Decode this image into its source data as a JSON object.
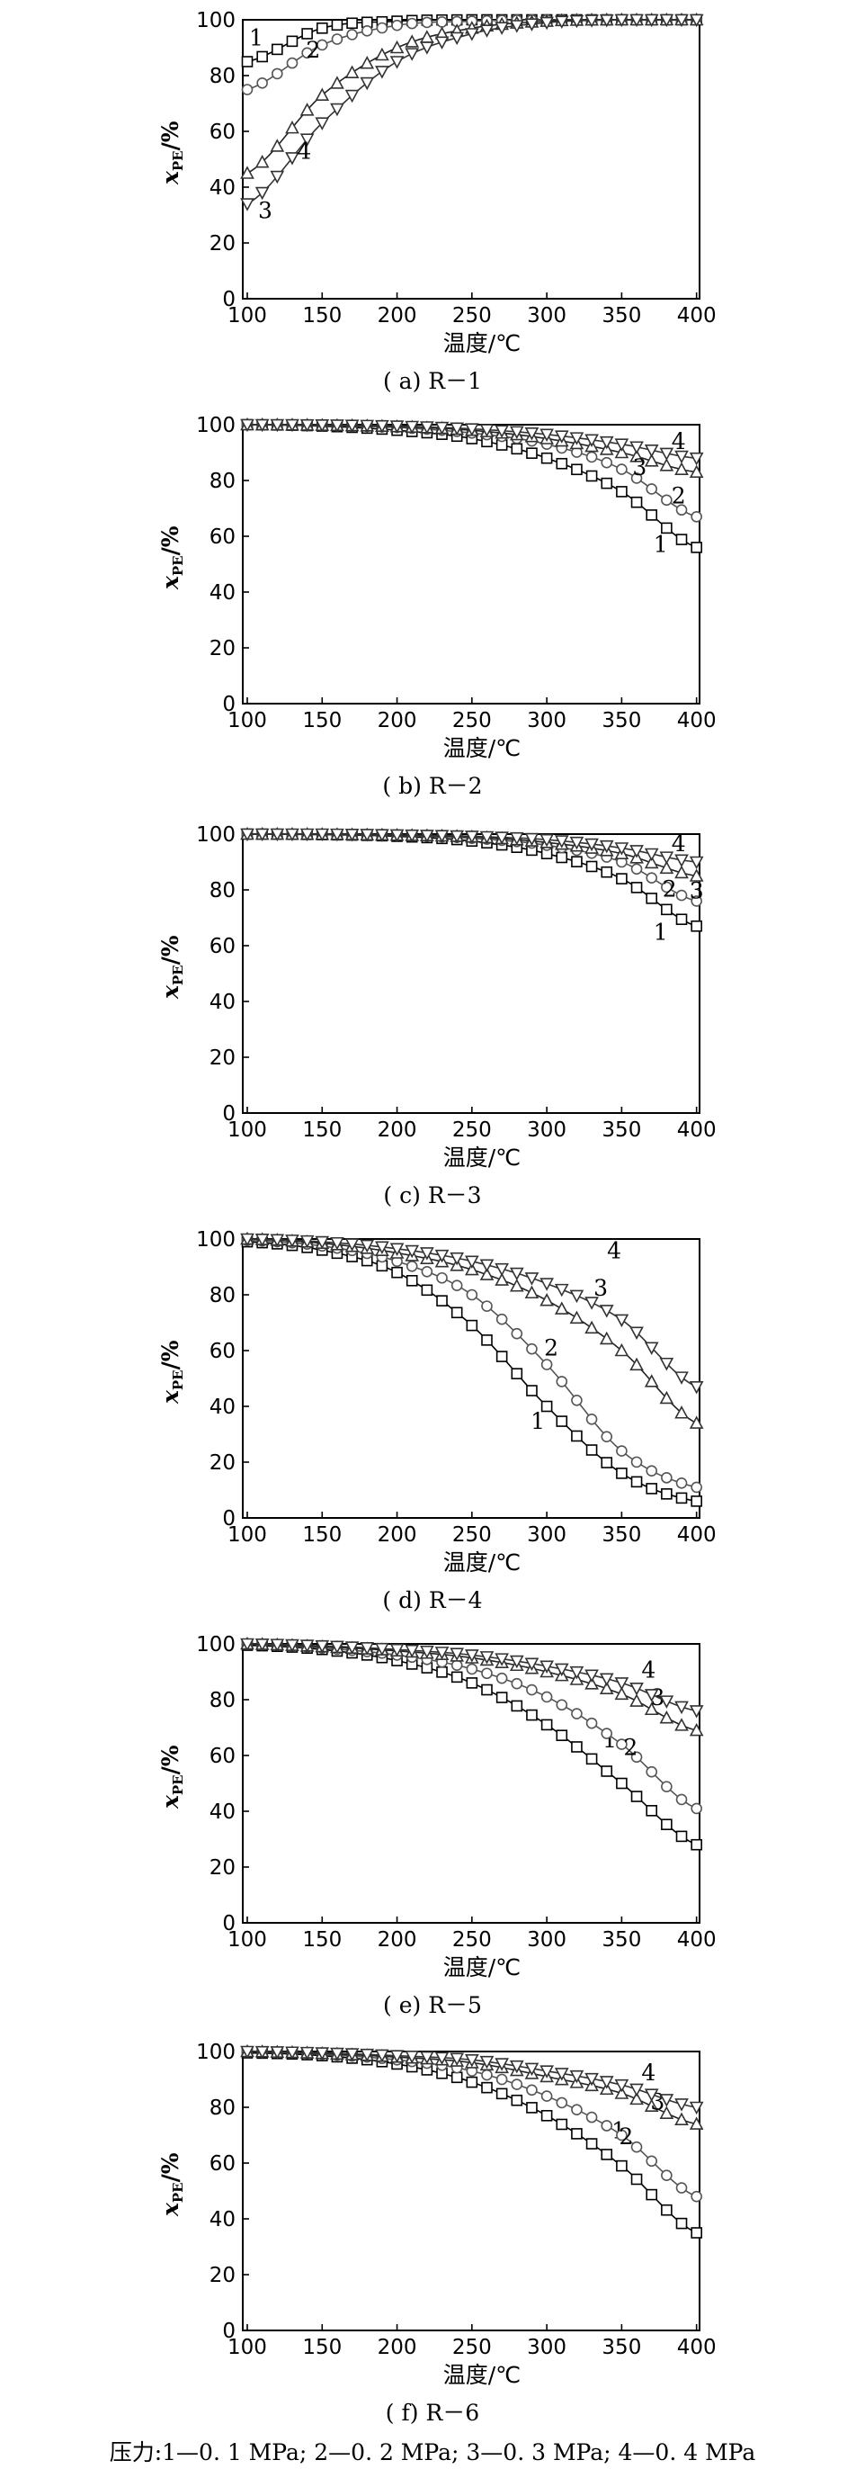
{
  "footer": "压力:1—0. 1 MPa; 2—0. 2 MPa; 3—0. 3 MPa; 4—0. 4 MPa",
  "axis": {
    "xlabel": "温度/℃",
    "ylabel": "x",
    "ylabel_sub": "PE",
    "ylabel_unit": "/%"
  },
  "chart_data": [
    {
      "type": "line",
      "caption": "( a) R－1",
      "x": [
        100,
        150,
        200,
        250,
        300,
        350,
        400
      ],
      "xlim": [
        97,
        402
      ],
      "ylim": [
        0,
        100
      ],
      "xticks": [
        100,
        150,
        200,
        250,
        300,
        350,
        400
      ],
      "yticks": [
        0,
        20,
        40,
        60,
        80,
        100
      ],
      "series": [
        {
          "name": "1",
          "marker": "square",
          "values": [
            85,
            97,
            99.5,
            100,
            100,
            100,
            100
          ]
        },
        {
          "name": "2",
          "marker": "circle",
          "values": [
            75,
            91,
            98,
            99.5,
            100,
            100,
            100
          ]
        },
        {
          "name": "3",
          "marker": "triangle",
          "values": [
            45,
            73,
            90,
            97,
            99.5,
            100,
            100
          ]
        },
        {
          "name": "4",
          "marker": "diamond",
          "values": [
            34,
            63,
            85,
            95,
            99,
            100,
            100
          ]
        }
      ]
    },
    {
      "type": "line",
      "caption": "( b) R－2",
      "x": [
        100,
        150,
        200,
        250,
        300,
        350,
        400
      ],
      "xlim": [
        97,
        402
      ],
      "ylim": [
        0,
        100
      ],
      "xticks": [
        100,
        150,
        200,
        250,
        300,
        350,
        400
      ],
      "yticks": [
        0,
        20,
        40,
        60,
        80,
        100
      ],
      "series": [
        {
          "name": "1",
          "marker": "square",
          "values": [
            100,
            99.5,
            98,
            95,
            88,
            76,
            56
          ]
        },
        {
          "name": "2",
          "marker": "circle",
          "values": [
            100,
            99.7,
            99,
            97,
            93,
            84,
            67
          ]
        },
        {
          "name": "3",
          "marker": "triangle",
          "values": [
            100,
            99.8,
            99.3,
            98,
            95,
            90,
            83
          ]
        },
        {
          "name": "4",
          "marker": "diamond",
          "values": [
            100,
            99.9,
            99.5,
            98.5,
            96.5,
            93,
            88
          ]
        }
      ]
    },
    {
      "type": "line",
      "caption": "( c) R－3",
      "x": [
        100,
        150,
        200,
        250,
        300,
        350,
        400
      ],
      "xlim": [
        97,
        402
      ],
      "ylim": [
        0,
        100
      ],
      "xticks": [
        100,
        150,
        200,
        250,
        300,
        350,
        400
      ],
      "yticks": [
        0,
        20,
        40,
        60,
        80,
        100
      ],
      "series": [
        {
          "name": "1",
          "marker": "square",
          "values": [
            100,
            99.8,
            99.2,
            97.5,
            93,
            84,
            67
          ]
        },
        {
          "name": "2",
          "marker": "circle",
          "values": [
            100,
            99.9,
            99.5,
            98.5,
            96,
            90,
            76
          ]
        },
        {
          "name": "3",
          "marker": "triangle",
          "values": [
            100,
            99.9,
            99.6,
            99,
            97,
            93,
            85
          ]
        },
        {
          "name": "4",
          "marker": "diamond",
          "values": [
            100,
            100,
            99.7,
            99.2,
            98,
            95,
            90
          ]
        }
      ]
    },
    {
      "type": "line",
      "caption": "( d) R－4",
      "x": [
        100,
        150,
        200,
        250,
        300,
        350,
        400
      ],
      "xlim": [
        97,
        402
      ],
      "ylim": [
        0,
        100
      ],
      "xticks": [
        100,
        150,
        200,
        250,
        300,
        350,
        400
      ],
      "yticks": [
        0,
        20,
        40,
        60,
        80,
        100
      ],
      "series": [
        {
          "name": "1",
          "marker": "square",
          "values": [
            99,
            96,
            88,
            69,
            40,
            16,
            6
          ]
        },
        {
          "name": "2",
          "marker": "circle",
          "values": [
            99.5,
            97.5,
            92,
            80,
            55,
            24,
            11
          ]
        },
        {
          "name": "3",
          "marker": "triangle",
          "values": [
            100,
            98.5,
            95,
            89,
            78,
            60,
            34
          ]
        },
        {
          "name": "4",
          "marker": "diamond",
          "values": [
            100,
            99,
            96.5,
            92,
            84,
            71,
            47
          ]
        }
      ]
    },
    {
      "type": "line",
      "caption": "( e) R－5",
      "x": [
        100,
        150,
        200,
        250,
        300,
        350,
        400
      ],
      "xlim": [
        97,
        402
      ],
      "ylim": [
        0,
        100
      ],
      "xticks": [
        100,
        150,
        200,
        250,
        300,
        350,
        400
      ],
      "yticks": [
        0,
        20,
        40,
        60,
        80,
        100
      ],
      "series": [
        {
          "name": "1",
          "marker": "square",
          "values": [
            99.5,
            98,
            94,
            86,
            71,
            50,
            28
          ]
        },
        {
          "name": "2",
          "marker": "circle",
          "values": [
            100,
            98.5,
            96,
            91,
            81,
            64,
            41
          ]
        },
        {
          "name": "3",
          "marker": "triangle",
          "values": [
            100,
            99,
            97.5,
            95,
            90,
            82,
            69
          ]
        },
        {
          "name": "4",
          "marker": "diamond",
          "values": [
            100,
            99.3,
            98,
            96,
            92,
            86,
            76
          ]
        }
      ]
    },
    {
      "type": "line",
      "caption": "( f) R－6",
      "x": [
        100,
        150,
        200,
        250,
        300,
        350,
        400
      ],
      "xlim": [
        97,
        402
      ],
      "ylim": [
        0,
        100
      ],
      "xticks": [
        100,
        150,
        200,
        250,
        300,
        350,
        400
      ],
      "yticks": [
        0,
        20,
        40,
        60,
        80,
        100
      ],
      "series": [
        {
          "name": "1",
          "marker": "square",
          "values": [
            99.5,
            98.5,
            95.5,
            89,
            77,
            59,
            35
          ]
        },
        {
          "name": "2",
          "marker": "circle",
          "values": [
            100,
            99,
            97,
            93,
            84,
            70,
            48
          ]
        },
        {
          "name": "3",
          "marker": "triangle",
          "values": [
            100,
            99.3,
            98,
            96,
            91,
            85,
            74
          ]
        },
        {
          "name": "4",
          "marker": "diamond",
          "values": [
            100,
            99.5,
            98.5,
            97,
            93,
            88,
            80
          ]
        }
      ]
    }
  ]
}
